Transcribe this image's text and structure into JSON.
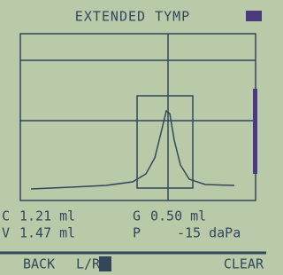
{
  "header": {
    "title": "EXTENDED TYMP"
  },
  "readings": [
    {
      "label": "C",
      "value": "1.21 ml"
    },
    {
      "label": "G",
      "value": "0.50 ml"
    },
    {
      "label": "V",
      "value": "1.47 ml"
    },
    {
      "label": "P",
      "value": "-15 daPa"
    }
  ],
  "softkeys": {
    "left": "BACK",
    "middle": "L/R",
    "right": "CLEAR"
  }
}
